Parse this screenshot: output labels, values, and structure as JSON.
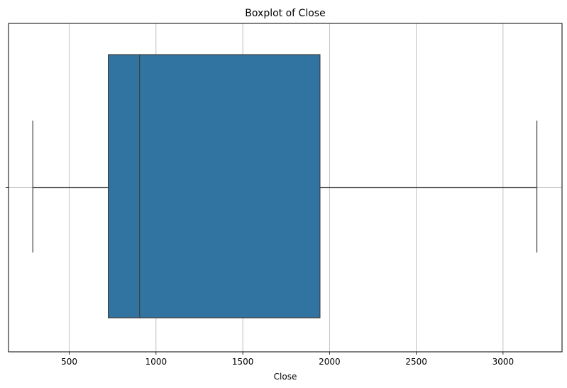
{
  "chart_data": {
    "type": "boxplot",
    "title": "Boxplot of Close",
    "xlabel": "Close",
    "ylabel": "",
    "xlim": [
      150,
      3340
    ],
    "xticks": [
      500,
      1000,
      1500,
      2000,
      2500,
      3000
    ],
    "xtick_labels": [
      "500",
      "1000",
      "1500",
      "2000",
      "2500",
      "3000"
    ],
    "grid": true,
    "orientation": "horizontal",
    "box": {
      "whisker_low": 290,
      "q1": 725,
      "median": 905,
      "q3": 1945,
      "whisker_high": 3195
    },
    "box_color": "#3274a1",
    "line_color": "#3f3f3f",
    "grid_color": "#b0b0b0"
  }
}
